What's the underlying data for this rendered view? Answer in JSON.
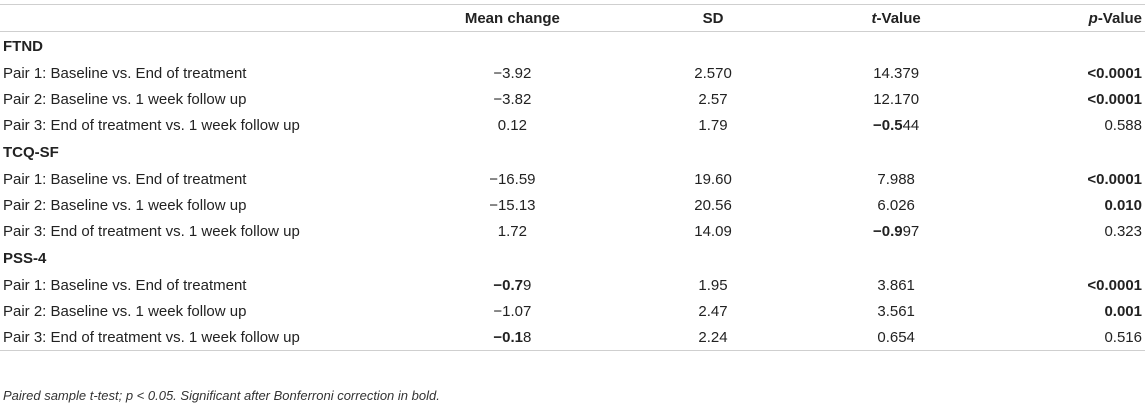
{
  "table": {
    "headers": {
      "label": "",
      "mean_change": "Mean change",
      "sd": "SD",
      "t_value_italic": "t",
      "t_value_rest": "-Value",
      "p_value_italic": "p",
      "p_value_rest": "-Value"
    },
    "sections": [
      {
        "title": "FTND",
        "rows": [
          {
            "label": "Pair 1: Baseline vs. End of treatment",
            "mean_a": "−3.92",
            "mean_b": "",
            "sd": "2.570",
            "t_a": "14.379",
            "t_b": "",
            "p": "<0.0001",
            "p_bold": true
          },
          {
            "label": "Pair 2: Baseline vs. 1 week follow up",
            "mean_a": "−3.82",
            "mean_b": "",
            "sd": "2.57",
            "t_a": "12.170",
            "t_b": "",
            "p": "<0.0001",
            "p_bold": true
          },
          {
            "label": "Pair 3: End of treatment vs. 1 week follow up",
            "mean_a": "0.12",
            "mean_b": "",
            "sd": "1.79",
            "t_a": "−0.5",
            "t_b": "44",
            "p": "0.588",
            "p_bold": false
          }
        ]
      },
      {
        "title": "TCQ-SF",
        "rows": [
          {
            "label": "Pair 1: Baseline vs. End of treatment",
            "mean_a": "−16.59",
            "mean_b": "",
            "sd": "19.60",
            "t_a": "7.988",
            "t_b": "",
            "p": "<0.0001",
            "p_bold": true
          },
          {
            "label": "Pair 2: Baseline vs. 1 week follow up",
            "mean_a": "−15.13",
            "mean_b": "",
            "sd": "20.56",
            "t_a": "6.026",
            "t_b": "",
            "p": "0.010",
            "p_bold": true
          },
          {
            "label": "Pair 3: End of treatment vs. 1 week follow up",
            "mean_a": "1.72",
            "mean_b": "",
            "sd": "14.09",
            "t_a": "−0.9",
            "t_b": "97",
            "p": "0.323",
            "p_bold": false
          }
        ]
      },
      {
        "title": "PSS-4",
        "rows": [
          {
            "label": "Pair 1: Baseline vs. End of treatment",
            "mean_a": "−0.7",
            "mean_b": "9",
            "sd": "1.95",
            "t_a": "3.861",
            "t_b": "",
            "p": "<0.0001",
            "p_bold": true
          },
          {
            "label": "Pair 2: Baseline vs. 1 week follow up",
            "mean_a": "−1.07",
            "mean_b": "",
            "sd": "2.47",
            "t_a": "3.561",
            "t_b": "",
            "p": "0.001",
            "p_bold": true
          },
          {
            "label": "Pair 3: End of treatment vs. 1 week follow up",
            "mean_a": "−0.1",
            "mean_b": "8",
            "sd": "2.24",
            "t_a": "0.654",
            "t_b": "",
            "p": "0.516",
            "p_bold": false
          }
        ]
      }
    ]
  },
  "footnote": "Paired sample t-test; p < 0.05. Significant after Bonferroni correction in bold."
}
